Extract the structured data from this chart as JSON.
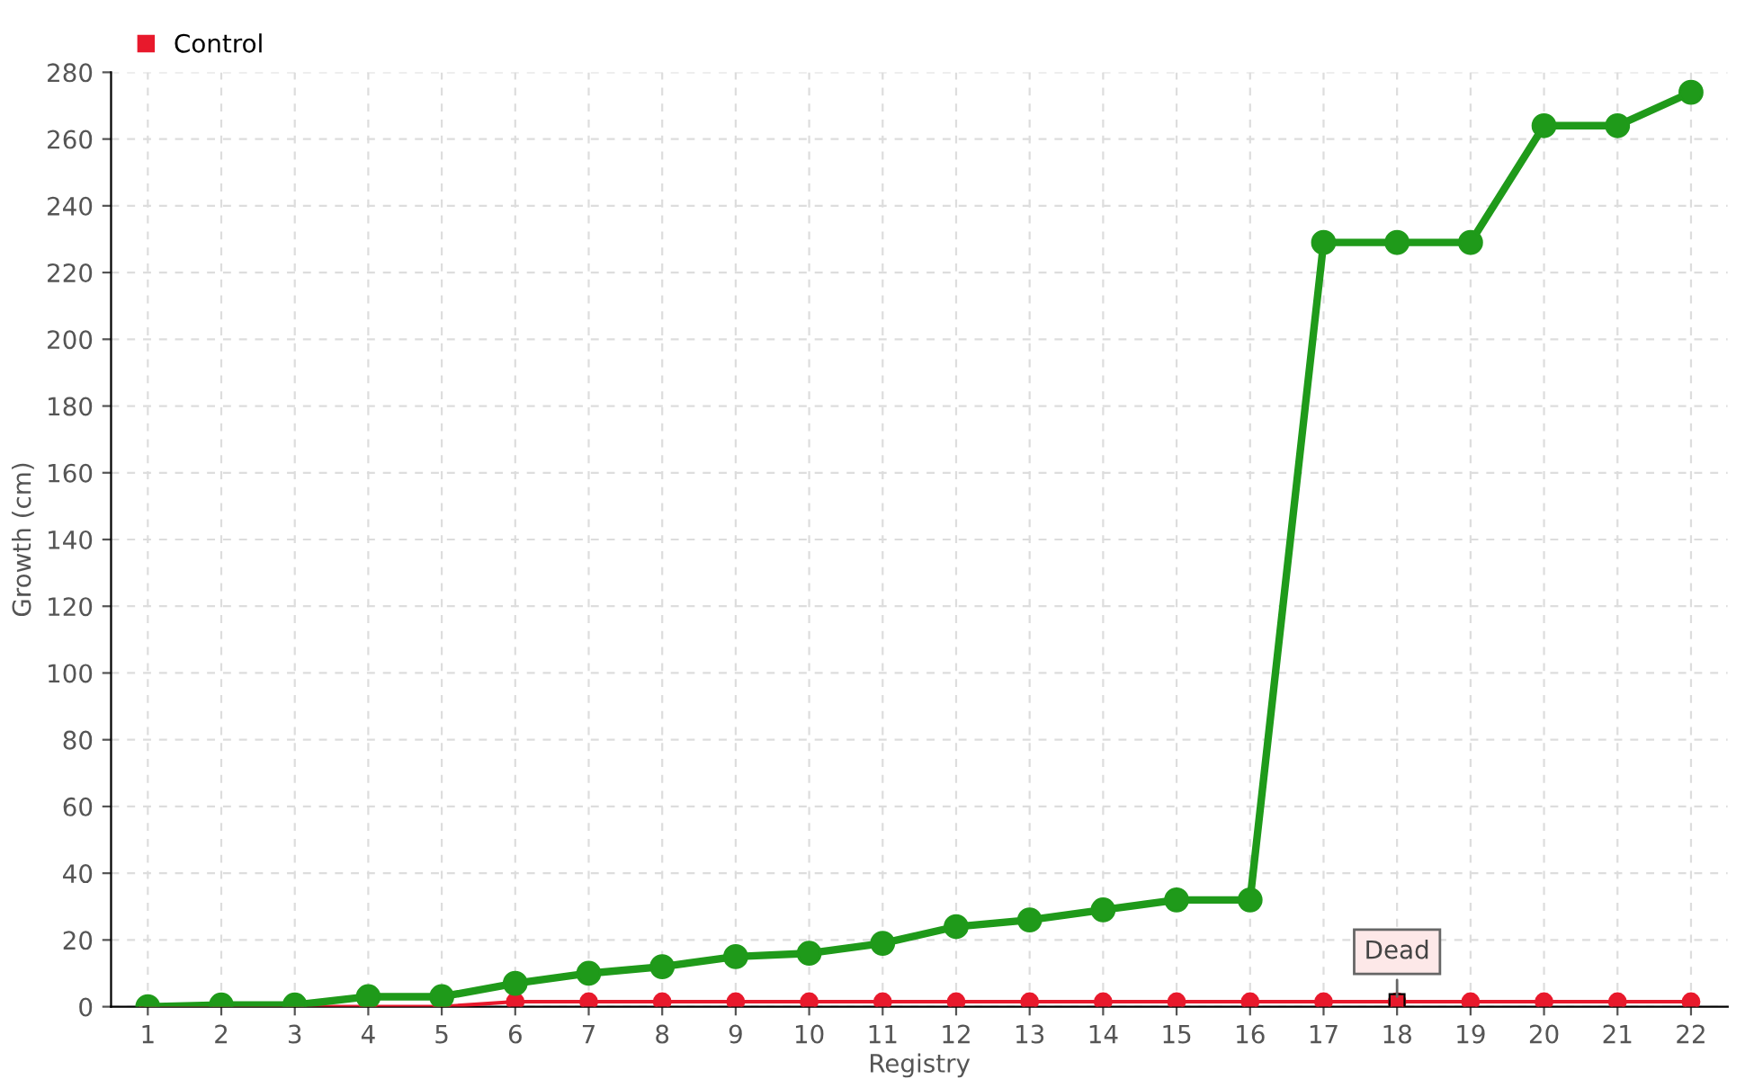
{
  "chart_data": {
    "type": "line",
    "xlabel": "Registry",
    "ylabel": "Growth (cm)",
    "categories": [
      "1",
      "2",
      "3",
      "4",
      "5",
      "6",
      "7",
      "8",
      "9",
      "10",
      "11",
      "12",
      "13",
      "14",
      "15",
      "16",
      "17",
      "18",
      "19",
      "20",
      "21",
      "22"
    ],
    "series": [
      {
        "color": "#1f9a1a",
        "values": [
          0,
          0.5,
          0.5,
          3,
          3,
          7,
          10,
          12,
          15,
          16,
          19,
          24,
          26,
          29,
          32,
          32,
          229,
          229,
          229,
          264,
          264,
          274
        ]
      },
      {
        "name": "Control",
        "color": "#e8192c",
        "values": [
          0,
          0,
          0,
          0,
          0,
          1.5,
          1.5,
          1.5,
          1.5,
          1.5,
          1.5,
          1.5,
          1.5,
          1.5,
          1.5,
          1.5,
          1.5,
          1.5,
          1.5,
          1.5,
          1.5,
          1.5
        ]
      }
    ],
    "ylim": [
      0,
      280
    ],
    "yticks": [
      0,
      20,
      40,
      60,
      80,
      100,
      120,
      140,
      160,
      180,
      200,
      220,
      240,
      260,
      280
    ],
    "grid": true,
    "legend": "top left",
    "marker": "circle",
    "line_style": "solid",
    "annotations": [
      {
        "text": "Dead",
        "x": "18",
        "y": 1.5
      }
    ]
  }
}
